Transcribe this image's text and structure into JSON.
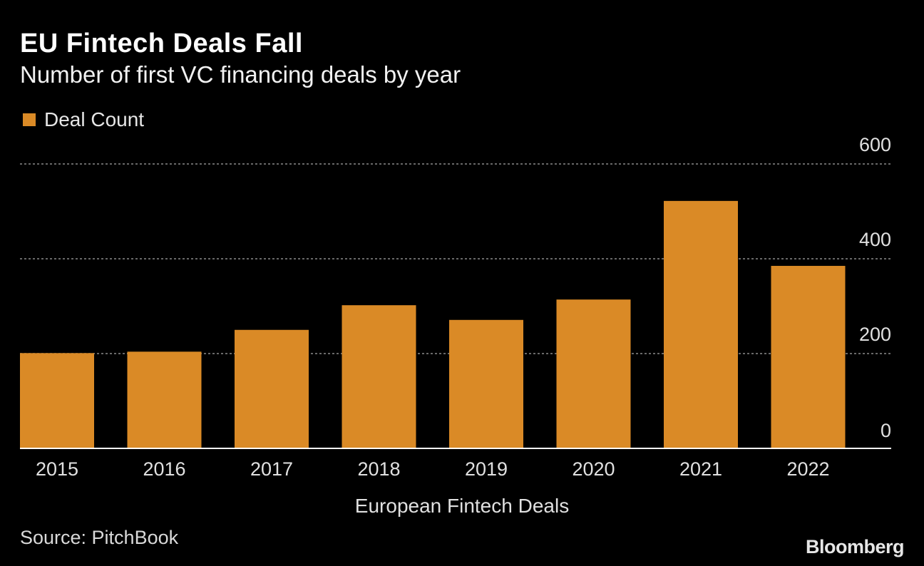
{
  "header": {
    "title": "EU Fintech Deals Fall",
    "subtitle": "Number of first VC financing deals by year"
  },
  "footer": {
    "source": "Source: PitchBook",
    "brand": "Bloomberg"
  },
  "colors": {
    "bar": "#da8a26",
    "grid": "#8a8a8a",
    "axis": "#ffffff",
    "tick_text": "#e0e0e0"
  },
  "chart_data": {
    "type": "bar",
    "categories": [
      "2015",
      "2016",
      "2017",
      "2018",
      "2019",
      "2020",
      "2021",
      "2022"
    ],
    "series": [
      {
        "name": "Deal Count",
        "values": [
          201,
          204,
          250,
          302,
          271,
          314,
          522,
          385
        ]
      }
    ],
    "xlabel": "European Fintech Deals",
    "ylabel": "",
    "ylim": [
      0,
      600
    ],
    "yticks": [
      0,
      200,
      400,
      600
    ],
    "grid": true,
    "legend_position": "top-left",
    "y_axis_side": "right"
  }
}
